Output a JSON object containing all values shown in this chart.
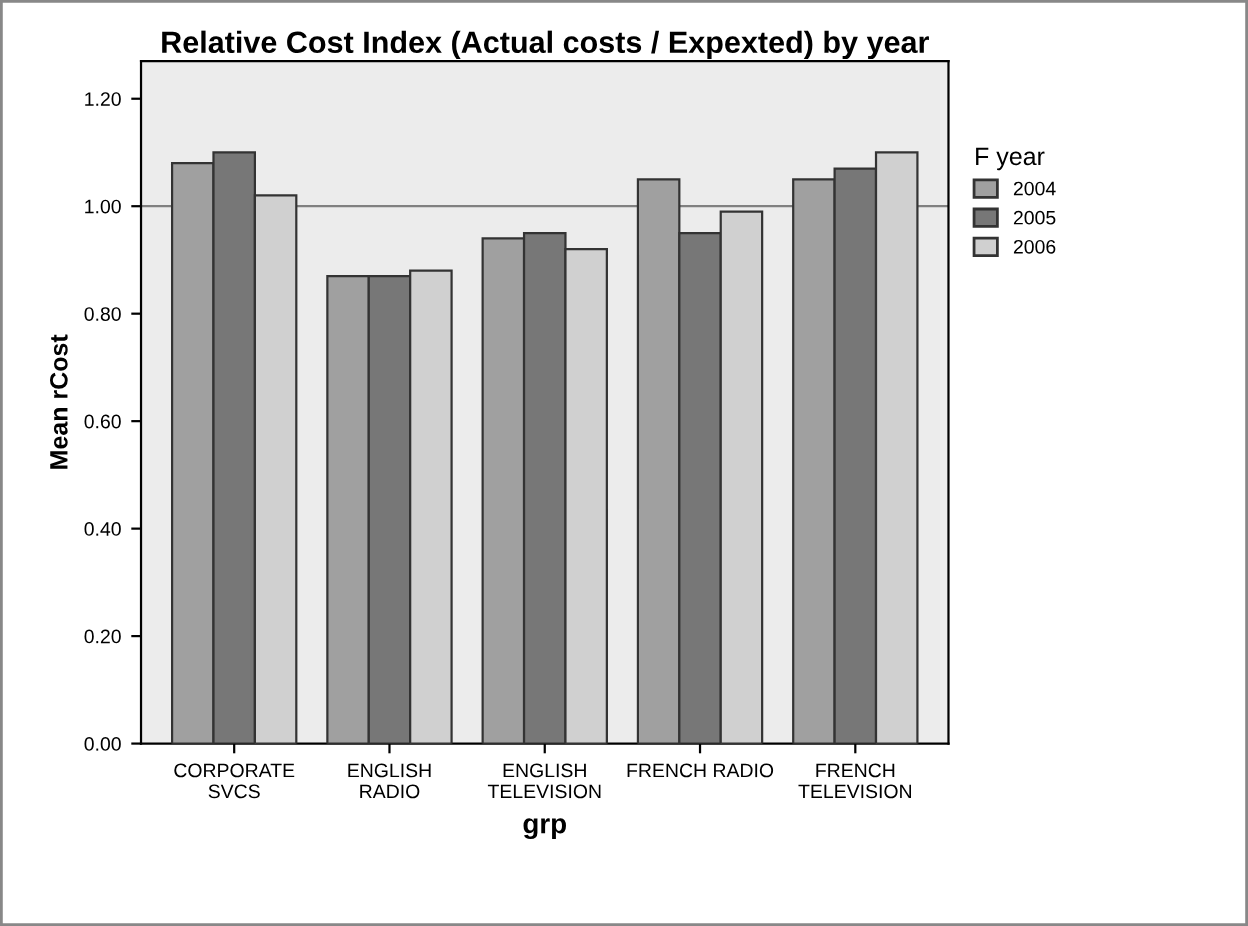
{
  "chart_data": {
    "type": "bar",
    "title": "Relative Cost Index (Actual costs / Expexted) by year",
    "xlabel": "grp",
    "ylabel": "Mean rCost",
    "legend_title": "F year",
    "categories": [
      "CORPORATE\nSVCS",
      "ENGLISH\nRADIO",
      "ENGLISH\nTELEVISION",
      "FRENCH RADIO",
      "FRENCH\nTELEVISION"
    ],
    "series": [
      {
        "name": "2004",
        "color": "#a0a0a0",
        "values": [
          1.08,
          0.87,
          0.94,
          1.05,
          1.05
        ]
      },
      {
        "name": "2005",
        "color": "#777777",
        "values": [
          1.1,
          0.87,
          0.95,
          0.95,
          1.07
        ]
      },
      {
        "name": "2006",
        "color": "#d0d0d0",
        "values": [
          1.02,
          0.88,
          0.92,
          0.99,
          1.1
        ]
      }
    ],
    "ylim": [
      0,
      1.27
    ],
    "yticks": [
      {
        "value": 0,
        "label": "0.00"
      },
      {
        "value": 0.2,
        "label": "0.20"
      },
      {
        "value": 0.4,
        "label": "0.40"
      },
      {
        "value": 0.6,
        "label": "0.60"
      },
      {
        "value": 0.8,
        "label": "0.80"
      },
      {
        "value": 1.0,
        "label": "1.00"
      },
      {
        "value": 1.2,
        "label": "1.20"
      }
    ],
    "ref_lines": [
      {
        "axis": "y",
        "value": 1.0,
        "color": "#808080"
      }
    ],
    "grid": false,
    "legend": "right"
  }
}
